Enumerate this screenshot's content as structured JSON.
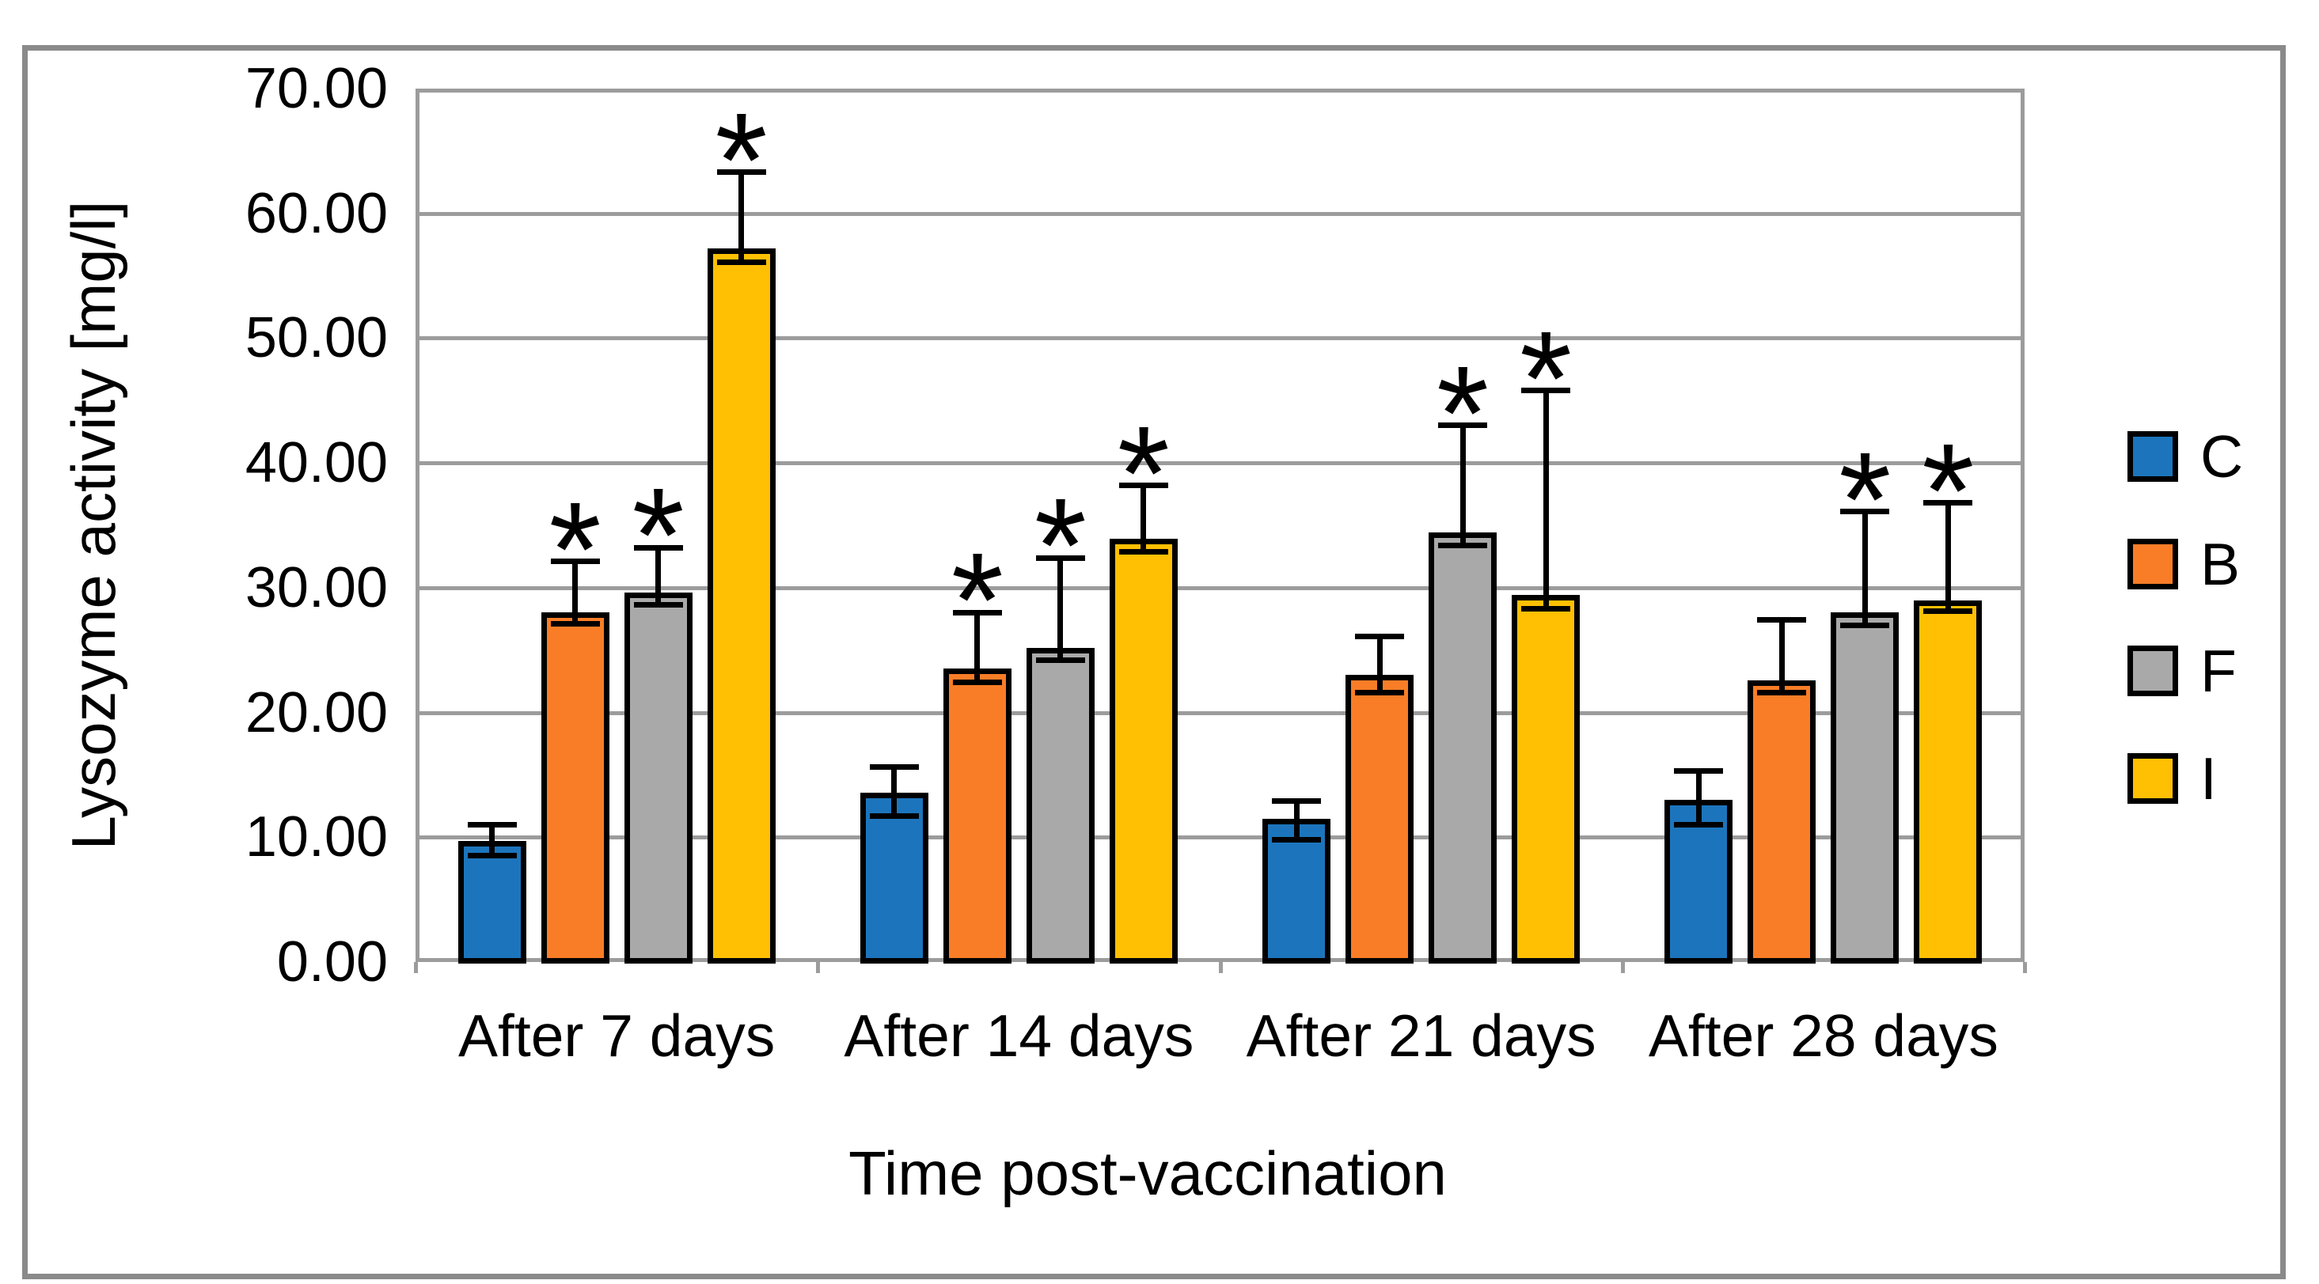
{
  "figure": {
    "background": "#ffffff",
    "frame_color": "#8a8a8a",
    "grid_color": "#9c9c9c"
  },
  "chart_data": {
    "type": "bar",
    "title": "",
    "xlabel": "Time post-vaccination",
    "ylabel": "Lysozyme activity [mg/l]",
    "categories": [
      "After 7 days",
      "After 14 days",
      "After 21 days",
      "After 28 days"
    ],
    "ylim": [
      0,
      70
    ],
    "ytick_step": 10,
    "ytick_labels": [
      "0.00",
      "10.00",
      "20.00",
      "30.00",
      "40.00",
      "50.00",
      "60.00",
      "70.00"
    ],
    "grid": true,
    "legend_position": "right",
    "significance_marker": "*",
    "series": [
      {
        "name": "C",
        "color": "#1c75bc",
        "values": [
          9.7,
          13.6,
          11.5,
          13.0
        ],
        "whisker_top": [
          11.0,
          15.6,
          12.9,
          15.3
        ],
        "whisker_bottom": [
          8.5,
          11.7,
          9.8,
          11.0
        ],
        "significant": [
          false,
          false,
          false,
          false
        ]
      },
      {
        "name": "B",
        "color": "#f97d27",
        "values": [
          28.0,
          23.5,
          23.0,
          22.6
        ],
        "whisker_top": [
          32.1,
          28.0,
          26.1,
          27.4
        ],
        "whisker_bottom": [
          27.1,
          22.4,
          21.6,
          21.6
        ],
        "significant": [
          true,
          true,
          false,
          false
        ]
      },
      {
        "name": "F",
        "color": "#a9a9a9",
        "values": [
          29.6,
          25.2,
          34.4,
          28.0
        ],
        "whisker_top": [
          33.2,
          32.4,
          43.0,
          36.1
        ],
        "whisker_bottom": [
          28.6,
          24.2,
          33.4,
          27.0
        ],
        "significant": [
          true,
          true,
          true,
          true
        ]
      },
      {
        "name": "I",
        "color": "#ffc003",
        "values": [
          57.2,
          33.9,
          29.4,
          29.0
        ],
        "whisker_top": [
          63.3,
          38.2,
          45.8,
          36.8
        ],
        "whisker_bottom": [
          56.1,
          32.9,
          28.3,
          28.1
        ],
        "significant": [
          true,
          true,
          true,
          true
        ]
      }
    ]
  }
}
